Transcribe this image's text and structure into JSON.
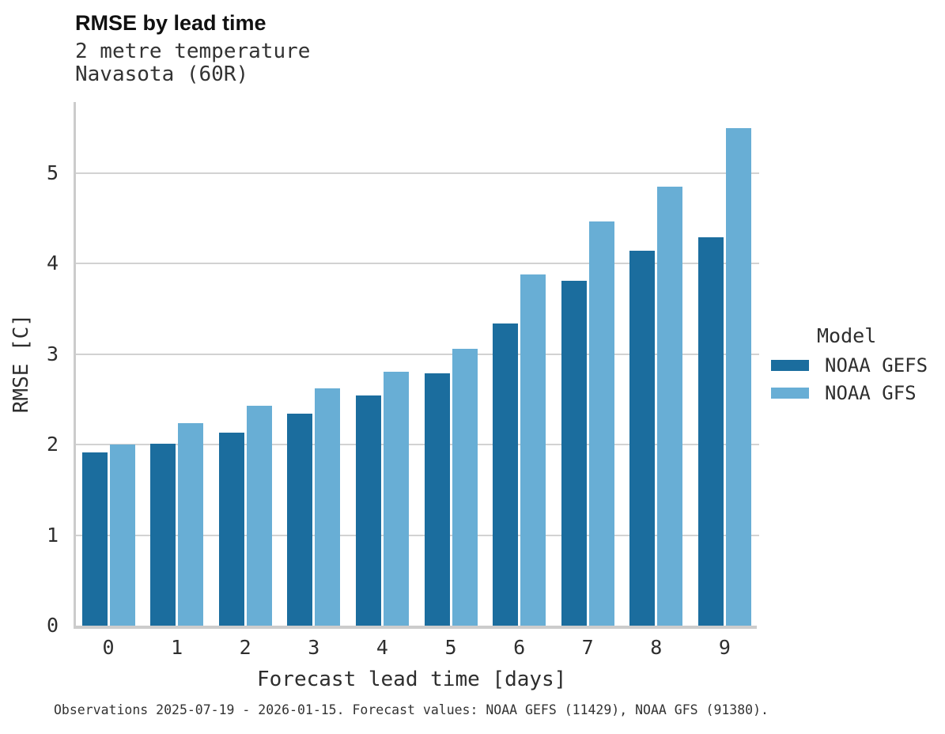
{
  "header": {
    "title": "RMSE by lead time",
    "subtitle_line1": "2 metre temperature",
    "subtitle_line2": "Navasota (60R)"
  },
  "chart_data": {
    "type": "bar",
    "title": "RMSE by lead time",
    "subtitle": [
      "2 metre temperature",
      "Navasota (60R)"
    ],
    "categories": [
      "0",
      "1",
      "2",
      "3",
      "4",
      "5",
      "6",
      "7",
      "8",
      "9"
    ],
    "series": [
      {
        "name": "NOAA GEFS",
        "color": "#1b6d9e",
        "values": [
          1.91,
          2.01,
          2.13,
          2.34,
          2.54,
          2.79,
          3.34,
          3.81,
          4.14,
          4.29
        ]
      },
      {
        "name": "NOAA GFS",
        "color": "#68aed5",
        "values": [
          2.0,
          2.24,
          2.43,
          2.62,
          2.8,
          3.06,
          3.88,
          4.46,
          4.85,
          5.49
        ]
      }
    ],
    "xlabel": "Forecast lead time [days]",
    "ylabel": "RMSE [C]",
    "ylim": [
      0,
      5.78
    ],
    "yticks": [
      0,
      1,
      2,
      3,
      4,
      5
    ],
    "grid": true,
    "legend_title": "Model",
    "legend_position": "right",
    "gridline_color": "#d2d2d2",
    "spine_color": "#cccccc"
  },
  "footer": {
    "caption": "Observations 2025-07-19 - 2026-01-15. Forecast values: NOAA GEFS (11429), NOAA GFS (91380)."
  }
}
